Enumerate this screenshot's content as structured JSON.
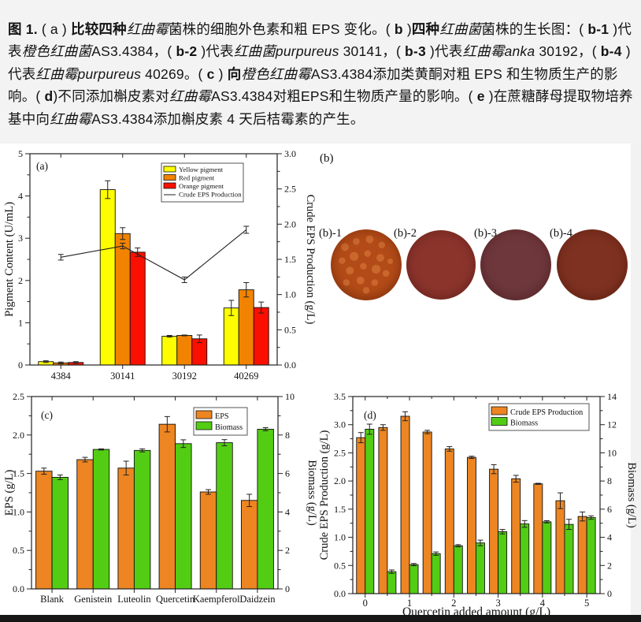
{
  "caption": {
    "segments": [
      {
        "t": "图 1.",
        "b": true
      },
      {
        "t": " ( a ) "
      },
      {
        "t": "比较四种",
        "b": true
      },
      {
        "t": "红曲霉",
        "i": true
      },
      {
        "t": "菌株的细胞外色素和粗 EPS 变化。( "
      },
      {
        "t": "b",
        "b": true
      },
      {
        "t": " )"
      },
      {
        "t": "四种",
        "b": true
      },
      {
        "t": "红曲菌",
        "i": true
      },
      {
        "t": "菌株的生长图：( "
      },
      {
        "t": "b-1",
        "b": true
      },
      {
        "t": " )代表"
      },
      {
        "t": "橙色红曲菌",
        "i": true
      },
      {
        "t": "AS3.4384，( "
      },
      {
        "t": "b-2",
        "b": true
      },
      {
        "t": " )代表"
      },
      {
        "t": "红曲菌purpureus",
        "i": true
      },
      {
        "t": " 30141，( "
      },
      {
        "t": "b-3",
        "b": true
      },
      {
        "t": " )代表"
      },
      {
        "t": "红曲霉anka",
        "i": true
      },
      {
        "t": " 30192，( "
      },
      {
        "t": "b-4",
        "b": true
      },
      {
        "t": " )代表"
      },
      {
        "t": "红曲霉purpureus",
        "i": true
      },
      {
        "t": " 40269。( "
      },
      {
        "t": "c",
        "b": true
      },
      {
        "t": " ) "
      },
      {
        "t": "向",
        "b": true
      },
      {
        "t": "橙色红曲霉",
        "i": true
      },
      {
        "t": "AS3.4384添加类黄酮对粗 EPS 和生物质生产的影响。( "
      },
      {
        "t": "d",
        "b": true
      },
      {
        "t": ")不同添加槲皮素对"
      },
      {
        "t": "红曲霉",
        "i": true
      },
      {
        "t": "AS3.4384对粗EPS和生物质产量的影响。( "
      },
      {
        "t": "e",
        "b": true
      },
      {
        "t": " )在蔗糖酵母提取物培养基中向"
      },
      {
        "t": "红曲霉",
        "i": true
      },
      {
        "t": "AS3.4384添加槲皮素 4 天后桔霉素的产生。"
      }
    ]
  },
  "panel_b": {
    "letter": "(b)",
    "plates": [
      {
        "label": "(b)-1",
        "base": "#b24b17",
        "edge": "#9a3e10",
        "spot": "#c9672d"
      },
      {
        "label": "(b)-2",
        "base": "#8a342c",
        "edge": "#7b2d26"
      },
      {
        "label": "(b)-3",
        "base": "#6d373c",
        "edge": "#5f3034"
      },
      {
        "label": "(b)-4",
        "base": "#7e3120",
        "edge": "#6f2a1b"
      }
    ]
  },
  "chart_data": [
    {
      "id": "a",
      "type": "bar",
      "panel_letter": "(a)",
      "categories": [
        "4384",
        "30141",
        "30192",
        "40269"
      ],
      "series": [
        {
          "name": "Yellow pigment",
          "axis": "left",
          "color": "#fdfd00",
          "values": [
            0.08,
            4.15,
            0.68,
            1.35
          ],
          "errors": [
            0.02,
            0.21,
            0.02,
            0.18
          ]
        },
        {
          "name": "Red pigment",
          "axis": "left",
          "color": "#f28300",
          "values": [
            0.05,
            3.11,
            0.7,
            1.78
          ],
          "errors": [
            0.02,
            0.14,
            0.01,
            0.17
          ]
        },
        {
          "name": "Orange pigment",
          "axis": "left",
          "color": "#fa0f00",
          "values": [
            0.06,
            2.67,
            0.62,
            1.36
          ],
          "errors": [
            0.02,
            0.1,
            0.09,
            0.13
          ]
        }
      ],
      "line_series": {
        "name": "Crude EPS Production",
        "axis": "right",
        "color": "#222222",
        "values": [
          1.53,
          1.69,
          1.21,
          1.92
        ],
        "errors": [
          0.04,
          0.04,
          0.04,
          0.05
        ]
      },
      "ylabel_left": "Pigment Content (U/mL)",
      "ylim_left": [
        0,
        5
      ],
      "yticks_left": [
        "0",
        "1",
        "2",
        "3",
        "4",
        "5"
      ],
      "ylabel_right": "Crude EPS Production (g/L)",
      "ylim_right": [
        0,
        3
      ],
      "yticks_right": [
        "0.0",
        "0.5",
        "1.0",
        "1.5",
        "2.0",
        "2.5",
        "3.0"
      ],
      "legend_position": "top-center",
      "grid": false
    },
    {
      "id": "c",
      "type": "bar",
      "panel_letter": "(c)",
      "categories": [
        "Blank",
        "Genistein",
        "Luteolin",
        "Quercetin",
        "Kaempferol",
        "Daidzein"
      ],
      "series": [
        {
          "name": "EPS",
          "axis": "left",
          "color": "#ec8522",
          "values": [
            1.53,
            1.68,
            1.57,
            2.14,
            1.26,
            1.15
          ],
          "errors": [
            0.04,
            0.03,
            0.09,
            0.1,
            0.03,
            0.08
          ]
        },
        {
          "name": "Biomass",
          "axis": "right",
          "color": "#53cd13",
          "values": [
            5.8,
            7.25,
            7.2,
            7.55,
            7.6,
            8.3
          ],
          "errors": [
            0.12,
            0.03,
            0.08,
            0.2,
            0.16,
            0.08
          ]
        }
      ],
      "ylabel_left": "EPS (g/L)",
      "ylim_left": [
        0,
        2.5
      ],
      "yticks_left": [
        "0.0",
        "0.5",
        "1.0",
        "1.5",
        "2.0",
        "2.5"
      ],
      "ylabel_right": "Biomass (g/L)",
      "ylim_right": [
        0,
        10
      ],
      "yticks_right": [
        "0",
        "2",
        "4",
        "6",
        "8",
        "10"
      ],
      "legend_position": "top-right",
      "grid": false
    },
    {
      "id": "d",
      "type": "bar",
      "panel_letter": "(d)",
      "x": [
        0,
        0.5,
        1,
        1.5,
        2,
        2.5,
        3,
        3.5,
        4,
        4.5,
        5
      ],
      "xticks": [
        "0",
        "1",
        "2",
        "3",
        "4",
        "5"
      ],
      "xlabel": "Quercetin added amount (g/L)",
      "series": [
        {
          "name": "Crude EPS Production",
          "axis": "left",
          "color": "#ec8522",
          "values": [
            2.77,
            2.95,
            3.15,
            2.87,
            2.57,
            2.42,
            2.21,
            2.04,
            1.95,
            1.65,
            1.37
          ],
          "errors": [
            0.09,
            0.05,
            0.08,
            0.03,
            0.04,
            0.02,
            0.08,
            0.06,
            0.01,
            0.14,
            0.08
          ]
        },
        {
          "name": "Biomass",
          "axis": "right",
          "color": "#53cd13",
          "values": [
            11.68,
            1.56,
            2.06,
            2.84,
            3.4,
            3.6,
            4.4,
            4.95,
            5.1,
            4.92,
            5.4
          ],
          "errors": [
            0.36,
            0.12,
            0.08,
            0.12,
            0.08,
            0.2,
            0.16,
            0.24,
            0.08,
            0.36,
            0.12
          ]
        }
      ],
      "ylabel_left": "Crude EPS Production (g/L)",
      "ylim_left": [
        0,
        3.5
      ],
      "yticks_left": [
        "0.0",
        "0.5",
        "1.0",
        "1.5",
        "2.0",
        "2.5",
        "3.0",
        "3.5"
      ],
      "ylabel_right": "Biomass (g/L)",
      "ylim_right": [
        0,
        14
      ],
      "yticks_right": [
        "0",
        "2",
        "4",
        "6",
        "8",
        "10",
        "12",
        "14"
      ],
      "legend_position": "top-right",
      "grid": false
    }
  ]
}
